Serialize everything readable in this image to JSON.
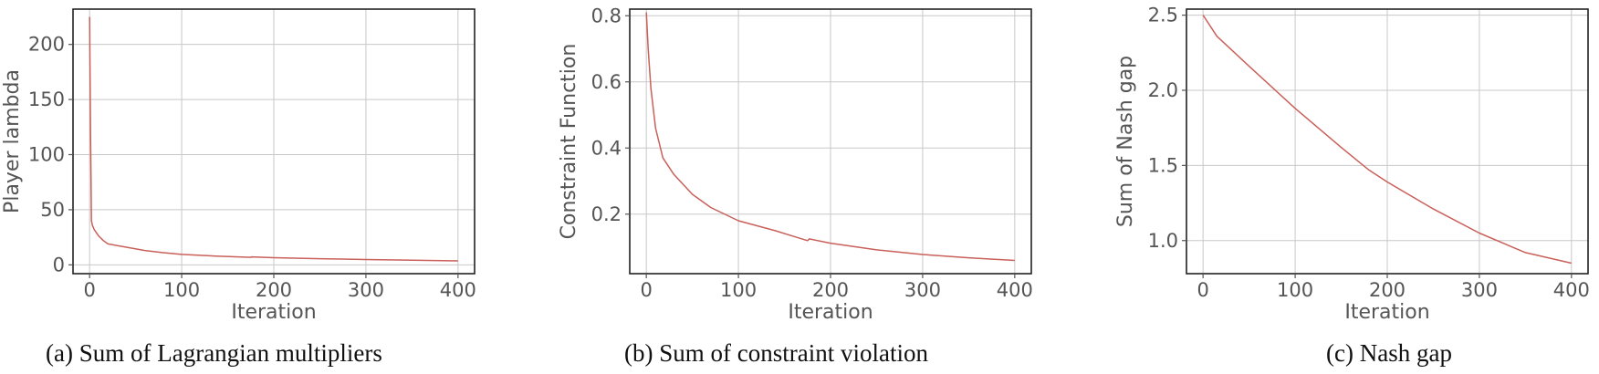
{
  "colors": {
    "series": "#c9605a",
    "grid": "#c8c8c8",
    "frame": "#222222",
    "text": "#555555"
  },
  "captions": [
    "(a) Sum of Lagrangian multipliers",
    "(b) Sum of constraint violation",
    "(c) Nash gap"
  ],
  "chart_data": [
    {
      "type": "line",
      "title": "",
      "xlabel": "Iteration",
      "ylabel": "Player lambda",
      "xlim": [
        -18,
        418
      ],
      "ylim": [
        -8,
        232
      ],
      "grid": true,
      "xticks": [
        0,
        100,
        200,
        300,
        400
      ],
      "xtick_labels": [
        "0",
        "100",
        "200",
        "300",
        "400"
      ],
      "yticks": [
        0,
        50,
        100,
        150,
        200
      ],
      "ytick_labels": [
        "0",
        "50",
        "100",
        "150",
        "200"
      ],
      "series": [
        {
          "x": [
            0,
            1,
            2,
            3,
            5,
            10,
            15,
            20,
            40,
            60,
            80,
            100,
            140,
            175,
            176,
            200,
            250,
            300,
            350,
            400
          ],
          "y": [
            225,
            120,
            40,
            36,
            32,
            26,
            22,
            19,
            16,
            13,
            11,
            9.5,
            7.8,
            6.8,
            7.2,
            6.5,
            5.6,
            4.8,
            4.2,
            3.6
          ]
        }
      ]
    },
    {
      "type": "line",
      "title": "",
      "xlabel": "Iteration",
      "ylabel": "Constraint Function",
      "xlim": [
        -18,
        418
      ],
      "ylim": [
        0.02,
        0.82
      ],
      "grid": true,
      "xticks": [
        0,
        100,
        200,
        300,
        400
      ],
      "xtick_labels": [
        "0",
        "100",
        "200",
        "300",
        "400"
      ],
      "yticks": [
        0.2,
        0.4,
        0.6,
        0.8
      ],
      "ytick_labels": [
        "0.2",
        "0.4",
        "0.6",
        "0.8"
      ],
      "series": [
        {
          "x": [
            0,
            2,
            5,
            10,
            18,
            30,
            50,
            70,
            100,
            140,
            175,
            177,
            200,
            250,
            300,
            350,
            400
          ],
          "y": [
            0.81,
            0.7,
            0.58,
            0.46,
            0.37,
            0.32,
            0.26,
            0.22,
            0.18,
            0.15,
            0.12,
            0.125,
            0.112,
            0.092,
            0.078,
            0.068,
            0.06
          ]
        }
      ]
    },
    {
      "type": "line",
      "title": "",
      "xlabel": "Iteration",
      "ylabel": "Sum of Nash gap",
      "xlim": [
        -18,
        418
      ],
      "ylim": [
        0.78,
        2.54
      ],
      "grid": true,
      "xticks": [
        0,
        100,
        200,
        300,
        400
      ],
      "xtick_labels": [
        "0",
        "100",
        "200",
        "300",
        "400"
      ],
      "yticks": [
        1.0,
        1.5,
        2.0,
        2.5
      ],
      "ytick_labels": [
        "1.0",
        "1.5",
        "2.0",
        "2.5"
      ],
      "series": [
        {
          "x": [
            0,
            15,
            50,
            100,
            150,
            180,
            200,
            250,
            300,
            350,
            400
          ],
          "y": [
            2.5,
            2.36,
            2.16,
            1.88,
            1.62,
            1.47,
            1.39,
            1.21,
            1.05,
            0.92,
            0.85
          ]
        }
      ]
    }
  ]
}
